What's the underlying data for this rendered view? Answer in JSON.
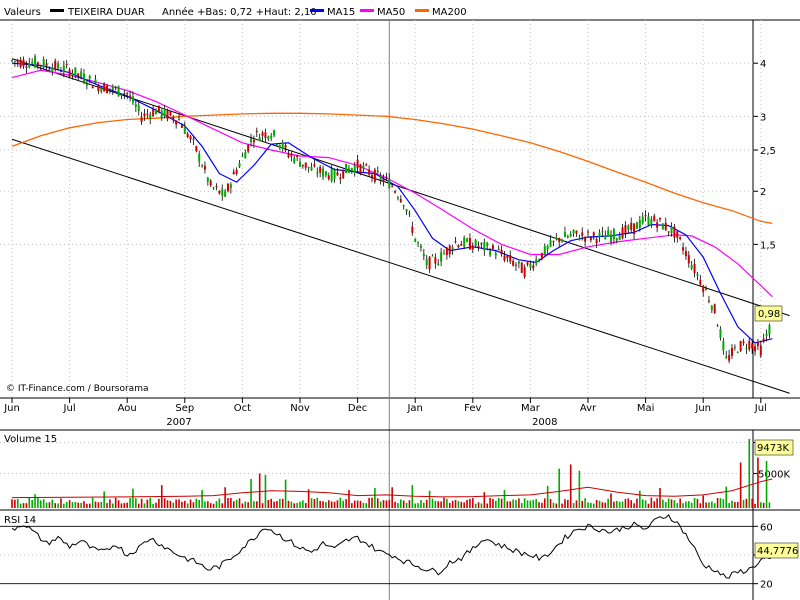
{
  "legend": {
    "prefix": "Valeurs",
    "name": "TEIXEIRA DUAR",
    "stats": "Année +Bas: 0,72 +Haut: 2,10",
    "series": [
      {
        "label": "MA15",
        "color": "#0000ff"
      },
      {
        "label": "MA50",
        "color": "#ff00ff"
      },
      {
        "label": "MA200",
        "color": "#ff6600"
      }
    ]
  },
  "watermark": "© IT-Finance.com / Boursorama",
  "colors": {
    "up": "#00aa00",
    "down": "#cc0000",
    "wick": "#000000",
    "grid": "#c0c0c0",
    "frame": "#000000",
    "label_bg": "#ffff99"
  },
  "price_panel": {
    "y_scale": "log",
    "y_range": [
      0.66,
      5.0
    ],
    "y_ticks": [
      {
        "v": 4,
        "label": "4"
      },
      {
        "v": 3,
        "label": "3"
      },
      {
        "v": 2.5,
        "label": "2,5"
      },
      {
        "v": 2,
        "label": "2"
      },
      {
        "v": 1.5,
        "label": "1,5"
      }
    ],
    "last_label": "0,98",
    "last_value": 0.98
  },
  "volume_panel": {
    "title": "Volume 15",
    "y_ticks": [
      {
        "v": 9473,
        "label": "9473K"
      },
      {
        "v": 5000,
        "label": "5000K"
      }
    ],
    "last_value": 9473,
    "y_max": 11000
  },
  "rsi_panel": {
    "title": "RSI 14",
    "y_range": [
      10,
      70
    ],
    "y_ticks": [
      {
        "v": 60,
        "label": "60"
      },
      {
        "v": 40,
        "label": "40"
      },
      {
        "v": 20,
        "label": "20"
      }
    ],
    "last_label": "44,7776",
    "last_value": 44.78
  },
  "x_axis": {
    "months": [
      "Jun",
      "Jul",
      "Aou",
      "Sep",
      "Oct",
      "Nov",
      "Dec",
      "Jan",
      "Fev",
      "Mar",
      "Avr",
      "Mai",
      "Jun",
      "Jul"
    ],
    "years": [
      "2007",
      "2008"
    ]
  },
  "chart_data": {
    "type": "candlestick",
    "period": "daily, June 2007 – July 2008",
    "month_index_range": [
      0,
      13.5
    ],
    "price": [
      [
        0.0,
        4.05
      ],
      [
        0.5,
        4.0
      ],
      [
        1.0,
        3.85
      ],
      [
        1.5,
        3.55
      ],
      [
        2.0,
        3.4
      ],
      [
        2.25,
        3.0
      ],
      [
        2.5,
        3.1
      ],
      [
        2.9,
        2.95
      ],
      [
        3.2,
        2.5
      ],
      [
        3.45,
        2.05
      ],
      [
        3.7,
        1.95
      ],
      [
        4.0,
        2.4
      ],
      [
        4.2,
        2.7
      ],
      [
        4.5,
        2.75
      ],
      [
        4.8,
        2.45
      ],
      [
        5.2,
        2.25
      ],
      [
        5.6,
        2.18
      ],
      [
        6.0,
        2.3
      ],
      [
        6.3,
        2.18
      ],
      [
        6.55,
        2.1
      ],
      [
        6.8,
        1.9
      ],
      [
        7.0,
        1.55
      ],
      [
        7.2,
        1.35
      ],
      [
        7.4,
        1.38
      ],
      [
        7.7,
        1.52
      ],
      [
        8.0,
        1.5
      ],
      [
        8.4,
        1.45
      ],
      [
        8.7,
        1.36
      ],
      [
        8.9,
        1.3
      ],
      [
        9.2,
        1.42
      ],
      [
        9.5,
        1.55
      ],
      [
        9.8,
        1.58
      ],
      [
        10.1,
        1.56
      ],
      [
        10.5,
        1.58
      ],
      [
        10.8,
        1.64
      ],
      [
        11.0,
        1.72
      ],
      [
        11.2,
        1.7
      ],
      [
        11.5,
        1.6
      ],
      [
        11.8,
        1.35
      ],
      [
        12.0,
        1.2
      ],
      [
        12.2,
        1.05
      ],
      [
        12.4,
        0.8
      ],
      [
        12.6,
        0.86
      ],
      [
        12.8,
        0.88
      ],
      [
        13.0,
        0.85
      ],
      [
        13.2,
        0.98
      ]
    ],
    "ma15": [
      [
        0.0,
        4.0
      ],
      [
        0.5,
        3.95
      ],
      [
        1.0,
        3.8
      ],
      [
        1.5,
        3.55
      ],
      [
        2.0,
        3.35
      ],
      [
        2.5,
        3.1
      ],
      [
        3.0,
        2.85
      ],
      [
        3.3,
        2.55
      ],
      [
        3.6,
        2.2
      ],
      [
        3.9,
        2.1
      ],
      [
        4.2,
        2.3
      ],
      [
        4.5,
        2.58
      ],
      [
        4.8,
        2.6
      ],
      [
        5.2,
        2.4
      ],
      [
        5.6,
        2.25
      ],
      [
        6.0,
        2.22
      ],
      [
        6.3,
        2.2
      ],
      [
        6.7,
        2.05
      ],
      [
        7.0,
        1.8
      ],
      [
        7.3,
        1.55
      ],
      [
        7.6,
        1.45
      ],
      [
        8.0,
        1.48
      ],
      [
        8.4,
        1.45
      ],
      [
        8.8,
        1.38
      ],
      [
        9.1,
        1.36
      ],
      [
        9.4,
        1.45
      ],
      [
        9.7,
        1.53
      ],
      [
        10.0,
        1.56
      ],
      [
        10.4,
        1.57
      ],
      [
        10.8,
        1.6
      ],
      [
        11.1,
        1.67
      ],
      [
        11.4,
        1.66
      ],
      [
        11.7,
        1.58
      ],
      [
        12.0,
        1.4
      ],
      [
        12.3,
        1.15
      ],
      [
        12.6,
        0.96
      ],
      [
        12.9,
        0.88
      ],
      [
        13.2,
        0.9
      ]
    ],
    "ma50": [
      [
        0.0,
        3.7
      ],
      [
        0.5,
        3.85
      ],
      [
        1.0,
        3.75
      ],
      [
        1.5,
        3.6
      ],
      [
        2.0,
        3.45
      ],
      [
        2.5,
        3.25
      ],
      [
        3.0,
        3.02
      ],
      [
        3.5,
        2.8
      ],
      [
        4.0,
        2.6
      ],
      [
        4.5,
        2.5
      ],
      [
        5.0,
        2.42
      ],
      [
        5.5,
        2.4
      ],
      [
        6.0,
        2.3
      ],
      [
        6.5,
        2.15
      ],
      [
        7.0,
        1.98
      ],
      [
        7.5,
        1.8
      ],
      [
        8.0,
        1.63
      ],
      [
        8.5,
        1.5
      ],
      [
        9.0,
        1.42
      ],
      [
        9.5,
        1.42
      ],
      [
        10.0,
        1.48
      ],
      [
        10.5,
        1.52
      ],
      [
        11.0,
        1.55
      ],
      [
        11.5,
        1.58
      ],
      [
        11.8,
        1.57
      ],
      [
        12.2,
        1.48
      ],
      [
        12.6,
        1.35
      ],
      [
        13.0,
        1.2
      ],
      [
        13.2,
        1.13
      ]
    ],
    "ma200": [
      [
        0.0,
        2.55
      ],
      [
        0.5,
        2.7
      ],
      [
        1.0,
        2.82
      ],
      [
        1.5,
        2.9
      ],
      [
        2.0,
        2.95
      ],
      [
        2.5,
        2.97
      ],
      [
        3.0,
        3.0
      ],
      [
        3.5,
        3.02
      ],
      [
        4.0,
        3.04
      ],
      [
        4.5,
        3.05
      ],
      [
        5.0,
        3.05
      ],
      [
        5.5,
        3.04
      ],
      [
        6.0,
        3.02
      ],
      [
        6.5,
        3.0
      ],
      [
        7.0,
        2.95
      ],
      [
        7.5,
        2.88
      ],
      [
        8.0,
        2.8
      ],
      [
        8.5,
        2.7
      ],
      [
        9.0,
        2.6
      ],
      [
        9.5,
        2.48
      ],
      [
        10.0,
        2.35
      ],
      [
        10.5,
        2.22
      ],
      [
        11.0,
        2.1
      ],
      [
        11.5,
        1.98
      ],
      [
        12.0,
        1.88
      ],
      [
        12.5,
        1.8
      ],
      [
        13.0,
        1.7
      ],
      [
        13.2,
        1.68
      ]
    ],
    "channel": [
      {
        "from": [
          0.0,
          4.1
        ],
        "to": [
          13.5,
          1.02
        ]
      },
      {
        "from": [
          0.0,
          2.65
        ],
        "to": [
          13.5,
          0.67
        ]
      }
    ],
    "volume_spikes": [
      [
        0.05,
        1200
      ],
      [
        0.4,
        2000
      ],
      [
        1.6,
        2400
      ],
      [
        2.1,
        2800
      ],
      [
        2.6,
        3300
      ],
      [
        3.3,
        2600
      ],
      [
        3.7,
        3000
      ],
      [
        4.15,
        4200
      ],
      [
        4.3,
        5000
      ],
      [
        4.4,
        4800
      ],
      [
        4.75,
        4100
      ],
      [
        5.15,
        2700
      ],
      [
        5.85,
        2600
      ],
      [
        6.3,
        2900
      ],
      [
        6.6,
        3000
      ],
      [
        6.95,
        3300
      ],
      [
        7.25,
        2500
      ],
      [
        8.2,
        2300
      ],
      [
        8.55,
        2600
      ],
      [
        9.3,
        3200
      ],
      [
        9.5,
        5700
      ],
      [
        9.7,
        6300
      ],
      [
        9.85,
        5400
      ],
      [
        10.4,
        2100
      ],
      [
        10.9,
        2500
      ],
      [
        11.25,
        2900
      ],
      [
        12.0,
        1800
      ],
      [
        12.4,
        3100
      ],
      [
        12.65,
        6600
      ],
      [
        12.8,
        10000
      ],
      [
        12.95,
        7300
      ],
      [
        13.1,
        6800
      ],
      [
        13.2,
        9473
      ]
    ],
    "volume_ma": [
      [
        0.0,
        1500
      ],
      [
        1.0,
        1550
      ],
      [
        2.0,
        1600
      ],
      [
        3.0,
        1700
      ],
      [
        3.5,
        1800
      ],
      [
        4.0,
        2200
      ],
      [
        4.5,
        2500
      ],
      [
        5.0,
        2400
      ],
      [
        5.5,
        2200
      ],
      [
        6.0,
        1800
      ],
      [
        6.5,
        1900
      ],
      [
        7.0,
        1700
      ],
      [
        7.5,
        1600
      ],
      [
        8.0,
        1650
      ],
      [
        8.5,
        1800
      ],
      [
        9.0,
        1900
      ],
      [
        9.5,
        2400
      ],
      [
        10.0,
        3000
      ],
      [
        10.5,
        2300
      ],
      [
        11.0,
        1800
      ],
      [
        11.5,
        1700
      ],
      [
        12.0,
        1900
      ],
      [
        12.5,
        2500
      ],
      [
        13.0,
        3800
      ],
      [
        13.2,
        4200
      ]
    ],
    "rsi": [
      [
        0.0,
        58
      ],
      [
        0.2,
        62
      ],
      [
        0.4,
        55
      ],
      [
        0.6,
        48
      ],
      [
        0.8,
        52
      ],
      [
        1.0,
        46
      ],
      [
        1.2,
        50
      ],
      [
        1.4,
        44
      ],
      [
        1.6,
        42
      ],
      [
        1.8,
        48
      ],
      [
        2.0,
        40
      ],
      [
        2.2,
        45
      ],
      [
        2.4,
        52
      ],
      [
        2.6,
        47
      ],
      [
        2.8,
        42
      ],
      [
        3.0,
        38
      ],
      [
        3.2,
        35
      ],
      [
        3.4,
        30
      ],
      [
        3.6,
        32
      ],
      [
        3.8,
        38
      ],
      [
        4.0,
        45
      ],
      [
        4.2,
        52
      ],
      [
        4.4,
        60
      ],
      [
        4.6,
        55
      ],
      [
        4.8,
        50
      ],
      [
        5.0,
        45
      ],
      [
        5.2,
        42
      ],
      [
        5.4,
        48
      ],
      [
        5.6,
        44
      ],
      [
        5.8,
        50
      ],
      [
        6.0,
        52
      ],
      [
        6.2,
        47
      ],
      [
        6.4,
        42
      ],
      [
        6.6,
        40
      ],
      [
        6.8,
        36
      ],
      [
        7.0,
        33
      ],
      [
        7.2,
        30
      ],
      [
        7.4,
        28
      ],
      [
        7.6,
        35
      ],
      [
        7.8,
        38
      ],
      [
        8.0,
        44
      ],
      [
        8.2,
        52
      ],
      [
        8.4,
        48
      ],
      [
        8.6,
        45
      ],
      [
        8.8,
        42
      ],
      [
        9.0,
        40
      ],
      [
        9.2,
        37
      ],
      [
        9.4,
        44
      ],
      [
        9.6,
        52
      ],
      [
        9.8,
        58
      ],
      [
        10.0,
        60
      ],
      [
        10.2,
        58
      ],
      [
        10.4,
        56
      ],
      [
        10.6,
        59
      ],
      [
        10.8,
        61
      ],
      [
        11.0,
        58
      ],
      [
        11.2,
        65
      ],
      [
        11.4,
        68
      ],
      [
        11.6,
        60
      ],
      [
        11.8,
        48
      ],
      [
        12.0,
        33
      ],
      [
        12.2,
        30
      ],
      [
        12.4,
        24
      ],
      [
        12.6,
        28
      ],
      [
        12.8,
        30
      ],
      [
        13.0,
        36
      ],
      [
        13.2,
        44.78
      ]
    ]
  }
}
